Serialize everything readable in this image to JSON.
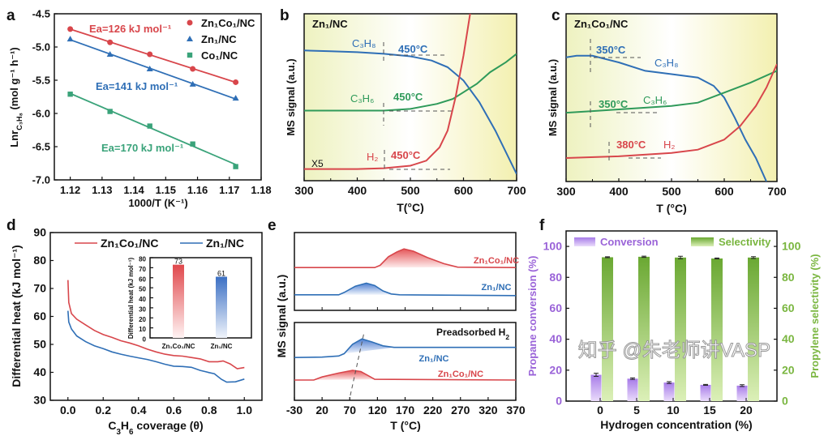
{
  "colors": {
    "red": "#d8464b",
    "blue": "#2f6fb6",
    "green_a": "#3aa37a",
    "green": "#2f9a5a",
    "purple": "#9a63d8",
    "lime": "#7ab640",
    "panel_bg": "#f4f5c4"
  },
  "watermark": "知乎 @朱老师讲VASP",
  "chart_data": [
    {
      "panel": "a",
      "type": "scatter",
      "xlabel": "1000/T (K⁻¹)",
      "ylabel_main": "Lnr",
      "ylabel_sub": "C₃H₈",
      "ylabel_unit": " (mol g⁻¹ h⁻¹)",
      "xlim": [
        1.115,
        1.18
      ],
      "ylim": [
        -7.0,
        -4.5
      ],
      "xticks": [
        "1.12",
        "1.13",
        "1.14",
        "1.15",
        "1.16",
        "1.17",
        "1.18"
      ],
      "yticks": [
        "-4.5",
        "-5.0",
        "-5.5",
        "-6.0",
        "-6.5",
        "-7.0"
      ],
      "legend_position": "top-right",
      "series": [
        {
          "name": "Zn₁Co₁/NC",
          "marker": "circle",
          "color": "#d8464b",
          "x": [
            1.12,
            1.1325,
            1.145,
            1.1585,
            1.172
          ],
          "y": [
            -4.73,
            -4.93,
            -5.11,
            -5.33,
            -5.53
          ],
          "annotation": "Ea=126 kJ mol⁻¹"
        },
        {
          "name": "Zn₁/NC",
          "marker": "triangle",
          "color": "#2f6fb6",
          "x": [
            1.12,
            1.1325,
            1.145,
            1.1585,
            1.172
          ],
          "y": [
            -4.88,
            -5.11,
            -5.33,
            -5.56,
            -5.77
          ],
          "annotation": "Ea=141 kJ mol⁻¹"
        },
        {
          "name": "Co₁/NC",
          "marker": "square",
          "color": "#3aa37a",
          "x": [
            1.12,
            1.1325,
            1.145,
            1.1585,
            1.172
          ],
          "y": [
            -5.71,
            -5.97,
            -6.19,
            -6.46,
            -6.8
          ],
          "annotation": "Ea=170 kJ mol⁻¹"
        }
      ]
    },
    {
      "panel": "b",
      "type": "line",
      "title": "Zn₁/NC",
      "xlabel": "T(°C)",
      "ylabel": "MS signal (a.u.)",
      "xlim": [
        300,
        700
      ],
      "xticks": [
        "300",
        "400",
        "500",
        "600",
        "700"
      ],
      "scale_note": "X5",
      "series": [
        {
          "name": "C₃H₈",
          "color": "#2f6fb6",
          "onset": "450°C",
          "points": [
            [
              300,
              0.78
            ],
            [
              350,
              0.775
            ],
            [
              400,
              0.77
            ],
            [
              450,
              0.76
            ],
            [
              500,
              0.745
            ],
            [
              540,
              0.72
            ],
            [
              570,
              0.68
            ],
            [
              600,
              0.6
            ],
            [
              630,
              0.47
            ],
            [
              660,
              0.3
            ],
            [
              700,
              0.04
            ]
          ]
        },
        {
          "name": "C₃H₆",
          "color": "#2f9a5a",
          "onset": "450°C",
          "points": [
            [
              300,
              0.42
            ],
            [
              400,
              0.42
            ],
            [
              450,
              0.42
            ],
            [
              500,
              0.43
            ],
            [
              550,
              0.46
            ],
            [
              580,
              0.49
            ],
            [
              600,
              0.53
            ],
            [
              625,
              0.58
            ],
            [
              650,
              0.65
            ],
            [
              680,
              0.71
            ],
            [
              700,
              0.76
            ]
          ]
        },
        {
          "name": "H₂",
          "color": "#d8464b",
          "onset": "450°C",
          "points": [
            [
              300,
              0.07
            ],
            [
              400,
              0.07
            ],
            [
              450,
              0.075
            ],
            [
              500,
              0.09
            ],
            [
              530,
              0.12
            ],
            [
              555,
              0.2
            ],
            [
              570,
              0.3
            ],
            [
              585,
              0.5
            ],
            [
              600,
              0.75
            ],
            [
              615,
              1.05
            ]
          ]
        }
      ]
    },
    {
      "panel": "c",
      "type": "line",
      "title": "Zn₁Co₁/NC",
      "xlabel": "T (°C)",
      "ylabel": "MS signal (a.u.)",
      "xlim": [
        300,
        700
      ],
      "xticks": [
        "300",
        "400",
        "500",
        "600",
        "700"
      ],
      "series": [
        {
          "name": "C₃H₈",
          "color": "#2f6fb6",
          "onset": "350°C",
          "points": [
            [
              300,
              0.74
            ],
            [
              320,
              0.75
            ],
            [
              350,
              0.75
            ],
            [
              400,
              0.71
            ],
            [
              450,
              0.66
            ],
            [
              500,
              0.64
            ],
            [
              550,
              0.62
            ],
            [
              580,
              0.57
            ],
            [
              600,
              0.5
            ],
            [
              620,
              0.38
            ],
            [
              640,
              0.25
            ],
            [
              660,
              0.14
            ],
            [
              680,
              0.0
            ]
          ]
        },
        {
          "name": "C₃H₆",
          "color": "#2f9a5a",
          "onset": "350°C",
          "points": [
            [
              300,
              0.41
            ],
            [
              350,
              0.42
            ],
            [
              400,
              0.43
            ],
            [
              450,
              0.44
            ],
            [
              500,
              0.45
            ],
            [
              550,
              0.47
            ],
            [
              600,
              0.53
            ],
            [
              650,
              0.59
            ],
            [
              700,
              0.66
            ]
          ]
        },
        {
          "name": "H₂",
          "color": "#d8464b",
          "onset": "380°C",
          "points": [
            [
              300,
              0.14
            ],
            [
              400,
              0.15
            ],
            [
              500,
              0.17
            ],
            [
              550,
              0.19
            ],
            [
              600,
              0.25
            ],
            [
              630,
              0.33
            ],
            [
              660,
              0.45
            ],
            [
              680,
              0.56
            ],
            [
              700,
              0.7
            ]
          ]
        }
      ]
    },
    {
      "panel": "d",
      "type": "line",
      "xlabel_pre": "C",
      "xlabel_sub1": "3",
      "xlabel_mid": "H",
      "xlabel_sub2": "6",
      "xlabel_post": " coverage (θ)",
      "ylabel": "Differential heat (kJ mol⁻¹)",
      "xlim": [
        -0.1,
        1.1
      ],
      "ylim": [
        30,
        90
      ],
      "xticks": [
        "0.0",
        "0.2",
        "0.4",
        "0.6",
        "0.8",
        "1.0"
      ],
      "yticks": [
        "30",
        "40",
        "50",
        "60",
        "70",
        "80",
        "90"
      ],
      "legend_position": "top",
      "series": [
        {
          "name": "Zn₁Co₁/NC",
          "color": "#d8464b",
          "points": [
            [
              0,
              73
            ],
            [
              0.005,
              65
            ],
            [
              0.02,
              61
            ],
            [
              0.05,
              59
            ],
            [
              0.1,
              57
            ],
            [
              0.15,
              55
            ],
            [
              0.2,
              53.5
            ],
            [
              0.25,
              52.5
            ],
            [
              0.3,
              51.3
            ],
            [
              0.35,
              50.5
            ],
            [
              0.4,
              49.5
            ],
            [
              0.45,
              48.3
            ],
            [
              0.5,
              47.3
            ],
            [
              0.55,
              46.5
            ],
            [
              0.6,
              46
            ],
            [
              0.65,
              45.8
            ],
            [
              0.7,
              45.3
            ],
            [
              0.75,
              44.8
            ],
            [
              0.8,
              43.8
            ],
            [
              0.85,
              43.8
            ],
            [
              0.88,
              44.1
            ],
            [
              0.92,
              43
            ],
            [
              0.96,
              41.3
            ],
            [
              1.0,
              41.7
            ]
          ]
        },
        {
          "name": "Zn₁/NC",
          "color": "#2f6fb6",
          "points": [
            [
              0,
              62
            ],
            [
              0.005,
              58
            ],
            [
              0.02,
              55.5
            ],
            [
              0.05,
              53
            ],
            [
              0.1,
              51
            ],
            [
              0.15,
              49.5
            ],
            [
              0.2,
              48.5
            ],
            [
              0.25,
              47.3
            ],
            [
              0.3,
              46.5
            ],
            [
              0.35,
              45.8
            ],
            [
              0.4,
              45.2
            ],
            [
              0.45,
              44.6
            ],
            [
              0.5,
              43.8
            ],
            [
              0.55,
              42.9
            ],
            [
              0.6,
              42.2
            ],
            [
              0.65,
              42.1
            ],
            [
              0.7,
              41.8
            ],
            [
              0.75,
              40.7
            ],
            [
              0.8,
              39.9
            ],
            [
              0.83,
              39.5
            ],
            [
              0.87,
              37.5
            ],
            [
              0.9,
              36.5
            ],
            [
              0.95,
              36.6
            ],
            [
              1.0,
              37.6
            ]
          ]
        }
      ],
      "inset": {
        "type": "bar",
        "ylabel": "Differential heat (kJ mol⁻¹)",
        "ylim": [
          0,
          80
        ],
        "yticks": [
          "0",
          "10",
          "20",
          "30",
          "40",
          "50",
          "60",
          "70",
          "80"
        ],
        "categories": [
          "Zn₁Co₁/NC",
          "Zn₁/NC"
        ],
        "values": [
          73,
          61
        ],
        "value_labels": [
          "73",
          "61"
        ],
        "colors": [
          "#e0383c",
          "#2e67c8"
        ]
      }
    },
    {
      "panel": "e",
      "type": "area",
      "xlabel": "T (°C)",
      "ylabel": "MS signal (a.u.)",
      "xlim": [
        -30,
        370
      ],
      "xticks": [
        "-30",
        "20",
        "70",
        "120",
        "170",
        "220",
        "270",
        "320",
        "370"
      ],
      "top": {
        "series": [
          {
            "name": "Zn₁Co₁/NC",
            "color": "#d8464b",
            "points": [
              [
                -30,
                0.55
              ],
              [
                115,
                0.55
              ],
              [
                125,
                0.58
              ],
              [
                140,
                0.69
              ],
              [
                155,
                0.75
              ],
              [
                168,
                0.79
              ],
              [
                185,
                0.76
              ],
              [
                210,
                0.68
              ],
              [
                240,
                0.6
              ],
              [
                265,
                0.555
              ],
              [
                370,
                0.55
              ]
            ]
          },
          {
            "name": "Zn₁/NC",
            "color": "#2f6fb6",
            "points": [
              [
                -30,
                0.2
              ],
              [
                50,
                0.2
              ],
              [
                60,
                0.23
              ],
              [
                80,
                0.31
              ],
              [
                100,
                0.35
              ],
              [
                115,
                0.32
              ],
              [
                130,
                0.25
              ],
              [
                145,
                0.21
              ],
              [
                160,
                0.2
              ],
              [
                370,
                0.19
              ]
            ]
          }
        ]
      },
      "bottom": {
        "title_main": "Preadsorbed H",
        "title_sub": "2",
        "series": [
          {
            "name": "Zn₁/NC",
            "color": "#2f6fb6",
            "points": [
              [
                -30,
                0.55
              ],
              [
                20,
                0.555
              ],
              [
                50,
                0.57
              ],
              [
                60,
                0.6
              ],
              [
                75,
                0.72
              ],
              [
                92,
                0.79
              ],
              [
                110,
                0.75
              ],
              [
                130,
                0.7
              ],
              [
                150,
                0.68
              ],
              [
                370,
                0.68
              ]
            ]
          },
          {
            "name": "Zn₁Co₁/NC",
            "color": "#d8464b",
            "points": [
              [
                -30,
                0.26
              ],
              [
                5,
                0.26
              ],
              [
                20,
                0.3
              ],
              [
                50,
                0.35
              ],
              [
                75,
                0.385
              ],
              [
                90,
                0.37
              ],
              [
                105,
                0.31
              ],
              [
                115,
                0.27
              ],
              [
                370,
                0.26
              ]
            ]
          }
        ]
      }
    },
    {
      "panel": "f",
      "type": "bar",
      "xlabel": "Hydrogen concentration (%)",
      "ylabel_left": "Propane conversion (%)",
      "ylabel_right": "Propylene selectivity (%)",
      "ylim": [
        0,
        110
      ],
      "yticks": [
        "0",
        "20",
        "40",
        "60",
        "80",
        "100"
      ],
      "categories": [
        "0",
        "5",
        "10",
        "15",
        "20"
      ],
      "legend_position": "top",
      "series": [
        {
          "name": "Conversion",
          "color": "#9a63d8",
          "values": [
            17,
            14.5,
            12,
            10.5,
            10
          ],
          "errors": [
            1,
            0.5,
            0.6,
            0.3,
            0.6
          ]
        },
        {
          "name": "Selectivity",
          "color": "#7ab640",
          "values": [
            93,
            93.3,
            92.8,
            92.2,
            92.8
          ],
          "errors": [
            0.3,
            0.4,
            0.8,
            0.3,
            0.6
          ]
        }
      ]
    }
  ],
  "panel_letters": [
    "a",
    "b",
    "c",
    "d",
    "e",
    "f"
  ]
}
